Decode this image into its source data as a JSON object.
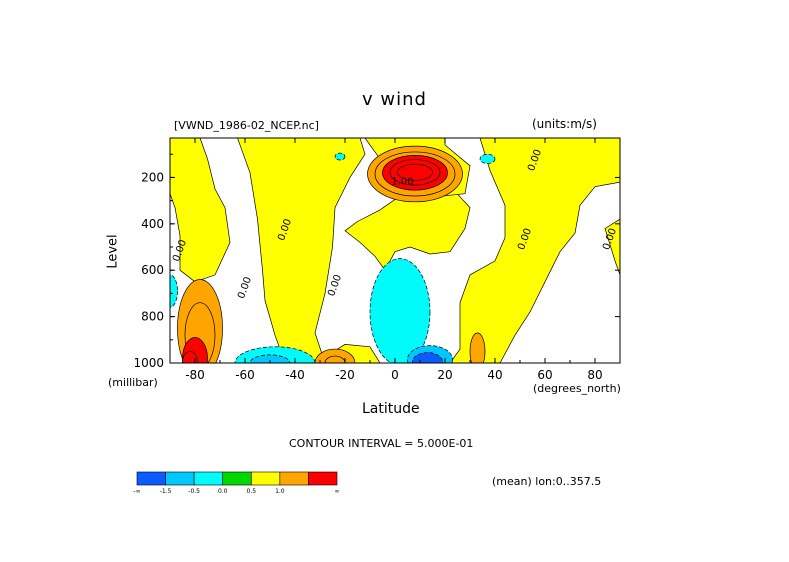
{
  "chart_data": {
    "type": "contour",
    "title": "v wind",
    "file_label": "[VWND_1986-02_NCEP.nc]",
    "units_label": "(units:m/s)",
    "xlabel": "Latitude",
    "xunits": "(degrees_north)",
    "ylabel": "Level",
    "yunits": "(millibar)",
    "xlim": [
      -90,
      90
    ],
    "ylim": [
      1000,
      30
    ],
    "y_reversed": true,
    "x_ticks": [
      {
        "value": -80,
        "label": "-80"
      },
      {
        "value": -60,
        "label": "-60"
      },
      {
        "value": -40,
        "label": "-40"
      },
      {
        "value": -20,
        "label": "-20"
      },
      {
        "value": 0,
        "label": "0"
      },
      {
        "value": 20,
        "label": "20"
      },
      {
        "value": 40,
        "label": "40"
      },
      {
        "value": 60,
        "label": "60"
      },
      {
        "value": 80,
        "label": "80"
      }
    ],
    "y_ticks": [
      {
        "value": 200,
        "label": "200"
      },
      {
        "value": 400,
        "label": "400"
      },
      {
        "value": 600,
        "label": "600"
      },
      {
        "value": 800,
        "label": "800"
      },
      {
        "value": 1000,
        "label": "1000"
      }
    ],
    "contour_interval_label": "CONTOUR INTERVAL = 5.000E-01",
    "mean_label": "(mean) lon:0..357.5",
    "colorbar": {
      "colors": [
        "#0b5bff",
        "#00c8ff",
        "#00fbfb",
        "#00d800",
        "#ffff00",
        "#ffa500",
        "#ff0000"
      ],
      "labels": [
        "-1.5",
        "-0.5",
        "0.0",
        "0.5",
        "1.0"
      ],
      "end_labels": [
        "-∞",
        "∞"
      ]
    },
    "contour_labels": [
      {
        "x": -85,
        "y": 520,
        "text": "0.00"
      },
      {
        "x": -59,
        "y": 680,
        "text": "0.00"
      },
      {
        "x": -43,
        "y": 430,
        "text": "0.00"
      },
      {
        "x": -23,
        "y": 670,
        "text": "0.00"
      },
      {
        "x": 3,
        "y": 230,
        "text": "1.00"
      },
      {
        "x": 57,
        "y": 130,
        "text": "0.00"
      },
      {
        "x": 53,
        "y": 470,
        "text": "0.00"
      },
      {
        "x": 87,
        "y": 470,
        "text": "0.00"
      }
    ],
    "field_levels": [
      -1.5,
      -1.0,
      -0.5,
      0.0,
      0.5,
      1.0,
      1.5,
      2.0,
      2.5,
      3.0
    ],
    "regions": [
      {
        "level": 0.0,
        "shape": "rect",
        "x0": -90,
        "x1": 90,
        "y0": 30,
        "y1": 1000
      },
      {
        "level": 0.5,
        "shape": "poly",
        "points": [
          [
            -90,
            270
          ],
          [
            -88,
            330
          ],
          [
            -86,
            450
          ],
          [
            -86,
            600
          ],
          [
            -80,
            650
          ],
          [
            -72,
            620
          ],
          [
            -66,
            480
          ],
          [
            -68,
            330
          ],
          [
            -72,
            250
          ],
          [
            -75,
            120
          ],
          [
            -78,
            30
          ],
          [
            -90,
            30
          ]
        ]
      },
      {
        "level": 0.5,
        "shape": "poly",
        "points": [
          [
            -63,
            30
          ],
          [
            -58,
            180
          ],
          [
            -55,
            380
          ],
          [
            -53,
            600
          ],
          [
            -52,
            730
          ],
          [
            -48,
            880
          ],
          [
            -44,
            1000
          ],
          [
            -28,
            1000
          ],
          [
            -32,
            870
          ],
          [
            -28,
            700
          ],
          [
            -25,
            500
          ],
          [
            -24,
            330
          ],
          [
            -18,
            200
          ],
          [
            -12,
            100
          ],
          [
            -14,
            30
          ]
        ]
      },
      {
        "level": 0.5,
        "shape": "poly",
        "points": [
          [
            -20,
            430
          ],
          [
            -15,
            390
          ],
          [
            -6,
            340
          ],
          [
            2,
            280
          ],
          [
            12,
            240
          ],
          [
            24,
            260
          ],
          [
            30,
            330
          ],
          [
            28,
            420
          ],
          [
            22,
            520
          ],
          [
            14,
            530
          ],
          [
            6,
            500
          ],
          [
            0,
            520
          ],
          [
            -4,
            600
          ],
          [
            -8,
            540
          ],
          [
            -14,
            480
          ]
        ]
      },
      {
        "level": 0.5,
        "shape": "poly",
        "points": [
          [
            -12,
            30
          ],
          [
            -6,
            120
          ],
          [
            10,
            290
          ],
          [
            28,
            270
          ],
          [
            30,
            150
          ],
          [
            20,
            60
          ],
          [
            20,
            30
          ]
        ]
      },
      {
        "level": 0.5,
        "shape": "poly",
        "points": [
          [
            34,
            30
          ],
          [
            38,
            170
          ],
          [
            44,
            320
          ],
          [
            44,
            460
          ],
          [
            40,
            560
          ],
          [
            30,
            620
          ],
          [
            26,
            740
          ],
          [
            26,
            940
          ],
          [
            22,
            1000
          ],
          [
            42,
            1000
          ],
          [
            48,
            880
          ],
          [
            54,
            780
          ],
          [
            60,
            650
          ],
          [
            66,
            520
          ],
          [
            72,
            440
          ],
          [
            74,
            320
          ],
          [
            80,
            240
          ],
          [
            90,
            220
          ],
          [
            90,
            30
          ],
          [
            60,
            30
          ]
        ]
      },
      {
        "level": 0.5,
        "shape": "poly",
        "points": [
          [
            84,
            420
          ],
          [
            88,
            560
          ],
          [
            90,
            620
          ],
          [
            90,
            380
          ]
        ]
      },
      {
        "level": 0.5,
        "shape": "poly",
        "points": [
          [
            -22,
            1000
          ],
          [
            -26,
            960
          ],
          [
            -20,
            920
          ],
          [
            -10,
            930
          ],
          [
            -6,
            1000
          ]
        ]
      },
      {
        "level": -0.5,
        "shape": "ellipse",
        "cx": 2,
        "cy": 780,
        "rx": 12,
        "ry": 230
      },
      {
        "level": -1.0,
        "shape": "ellipse",
        "cx": 14,
        "cy": 985,
        "rx": 9,
        "ry": 60
      },
      {
        "level": -1.5,
        "shape": "ellipse",
        "cx": 13,
        "cy": 995,
        "rx": 6,
        "ry": 40
      },
      {
        "level": -0.5,
        "shape": "ellipse",
        "cx": -48,
        "cy": 1000,
        "rx": 16,
        "ry": 70
      },
      {
        "level": -1.0,
        "shape": "ellipse",
        "cx": -50,
        "cy": 1000,
        "rx": 8,
        "ry": 35
      },
      {
        "level": -0.5,
        "shape": "ellipse",
        "cx": -90,
        "cy": 690,
        "rx": 3,
        "ry": 70
      },
      {
        "level": -0.5,
        "shape": "ellipse",
        "cx": 37,
        "cy": 120,
        "rx": 3,
        "ry": 20
      },
      {
        "level": -0.5,
        "shape": "ellipse",
        "cx": -22,
        "cy": 110,
        "rx": 2,
        "ry": 15
      },
      {
        "level": 1.0,
        "shape": "ellipse",
        "cx": -78,
        "cy": 850,
        "rx": 9,
        "ry": 210
      },
      {
        "level": 1.5,
        "shape": "ellipse",
        "cx": -78,
        "cy": 880,
        "rx": 6,
        "ry": 140
      },
      {
        "level": 2.0,
        "shape": "ellipse",
        "cx": -80,
        "cy": 980,
        "rx": 5,
        "ry": 90
      },
      {
        "level": 2.5,
        "shape": "ellipse",
        "cx": -82,
        "cy": 995,
        "rx": 3,
        "ry": 45
      },
      {
        "level": 1.0,
        "shape": "ellipse",
        "cx": -24,
        "cy": 1000,
        "rx": 8,
        "ry": 60
      },
      {
        "level": 1.5,
        "shape": "ellipse",
        "cx": -24,
        "cy": 1000,
        "rx": 4,
        "ry": 30
      },
      {
        "level": 1.0,
        "shape": "ellipse",
        "cx": 33,
        "cy": 950,
        "rx": 3,
        "ry": 80
      },
      {
        "level": 1.0,
        "shape": "ellipse",
        "cx": 8,
        "cy": 185,
        "rx": 19,
        "ry": 120
      },
      {
        "level": 1.5,
        "shape": "ellipse",
        "cx": 8,
        "cy": 185,
        "rx": 16,
        "ry": 95
      },
      {
        "level": 2.0,
        "shape": "ellipse",
        "cx": 8,
        "cy": 180,
        "rx": 13,
        "ry": 75
      },
      {
        "level": 2.5,
        "shape": "ellipse",
        "cx": 8,
        "cy": 178,
        "rx": 10,
        "ry": 55
      },
      {
        "level": 3.0,
        "shape": "ellipse",
        "cx": 8,
        "cy": 178,
        "rx": 7,
        "ry": 35
      }
    ]
  }
}
